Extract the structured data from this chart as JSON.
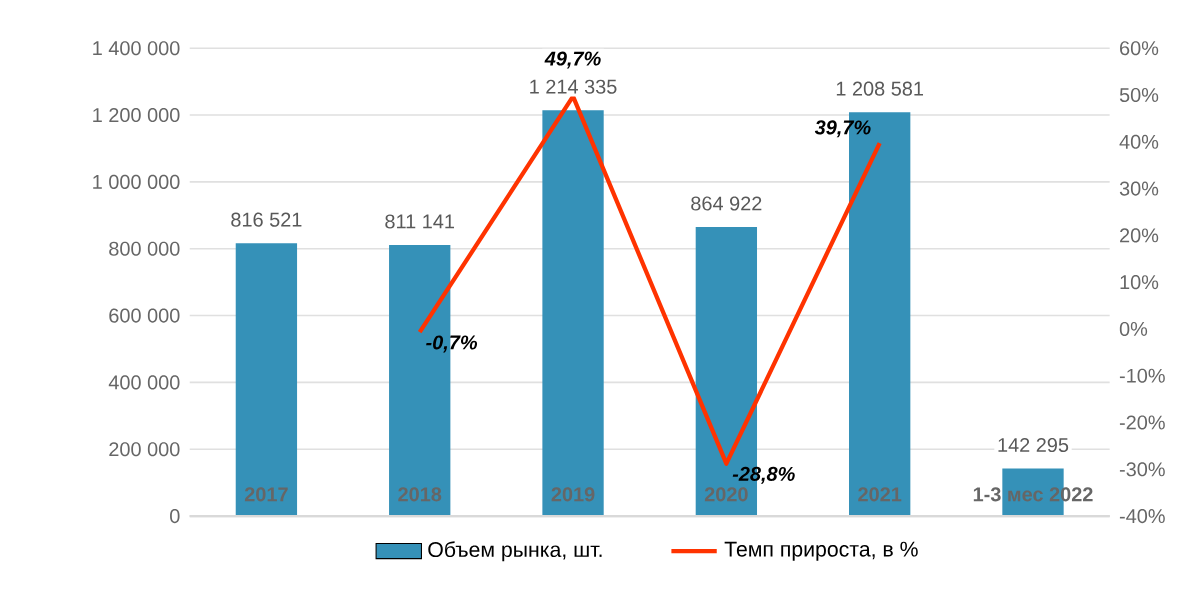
{
  "chart_data": {
    "type": "bar",
    "categories": [
      "2017",
      "2018",
      "2019",
      "2020",
      "2021",
      "1-3 мес 2022"
    ],
    "ylim": [
      0,
      1400000
    ],
    "yticks": [
      {
        "value": 0,
        "label": "0"
      },
      {
        "value": 200000,
        "label": "200 000"
      },
      {
        "value": 400000,
        "label": "400 000"
      },
      {
        "value": 600000,
        "label": "600 000"
      },
      {
        "value": 800000,
        "label": "800 000"
      },
      {
        "value": 1000000,
        "label": "1 000 000"
      },
      {
        "value": 1200000,
        "label": "1 200 000"
      },
      {
        "value": 1400000,
        "label": "1 400 000"
      }
    ],
    "y2lim": [
      -40,
      60
    ],
    "y2ticks": [
      {
        "value": -40,
        "label": "-40%"
      },
      {
        "value": -30,
        "label": "-30%"
      },
      {
        "value": -20,
        "label": "-20%"
      },
      {
        "value": -10,
        "label": "-10%"
      },
      {
        "value": 0,
        "label": "0%"
      },
      {
        "value": 10,
        "label": "10%"
      },
      {
        "value": 20,
        "label": "20%"
      },
      {
        "value": 30,
        "label": "30%"
      },
      {
        "value": 40,
        "label": "40%"
      },
      {
        "value": 50,
        "label": "50%"
      },
      {
        "value": 60,
        "label": "60%"
      }
    ],
    "grid": "y",
    "legend": "bottom",
    "series": [
      {
        "name": "Объем рынка, шт.",
        "color": "#3591b8",
        "values": [
          816521,
          811141,
          1214335,
          864922,
          1208581,
          142295
        ],
        "value_labels": [
          "816 521",
          "811 141",
          "1 214 335",
          "864 922",
          "1 208 581",
          "142 295"
        ]
      },
      {
        "name": "Темп прироста, в %",
        "type": "line",
        "axis": "y2",
        "color": "#ff3300",
        "values": [
          null,
          -0.7,
          49.7,
          -28.8,
          39.7,
          null
        ],
        "value_labels": [
          null,
          "-0,7%",
          "49,7%",
          "-28,8%",
          "39,7%",
          null
        ]
      }
    ]
  }
}
